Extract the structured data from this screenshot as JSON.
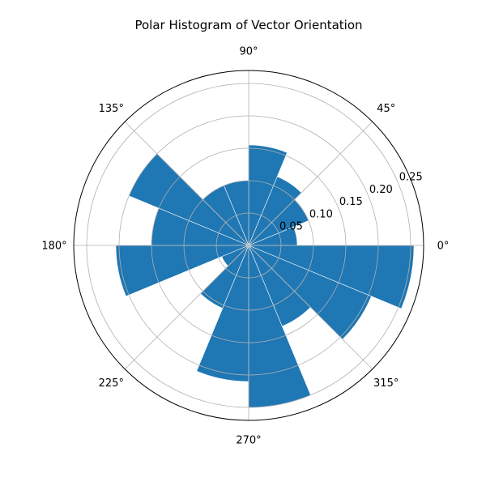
{
  "chart_data": {
    "type": "bar",
    "subtype": "polar-histogram",
    "title": "Polar Histogram of Vector Orientation",
    "bin_width_deg": 22.5,
    "bin_centers_deg": [
      11.25,
      33.75,
      56.25,
      78.75,
      101.25,
      123.75,
      146.25,
      168.75,
      191.25,
      213.75,
      236.25,
      258.75,
      281.25,
      303.75,
      326.25,
      348.75
    ],
    "values": [
      0.075,
      0.1,
      0.115,
      0.155,
      0.1,
      0.1,
      0.2,
      0.15,
      0.205,
      0.045,
      0.105,
      0.21,
      0.25,
      0.135,
      0.205,
      0.255
    ],
    "rlim": [
      0,
      0.27
    ],
    "r_ticks": [
      0.05,
      0.1,
      0.15,
      0.2,
      0.25
    ],
    "r_tick_labels": [
      "0.05",
      "0.10",
      "0.15",
      "0.20",
      "0.25"
    ],
    "theta_ticks_deg": [
      0,
      45,
      90,
      135,
      180,
      225,
      270,
      315
    ],
    "theta_tick_labels": [
      "0°",
      "45°",
      "90°",
      "135°",
      "180°",
      "225°",
      "270°",
      "315°"
    ],
    "grid": true,
    "bar_color": "#1f77b4"
  }
}
